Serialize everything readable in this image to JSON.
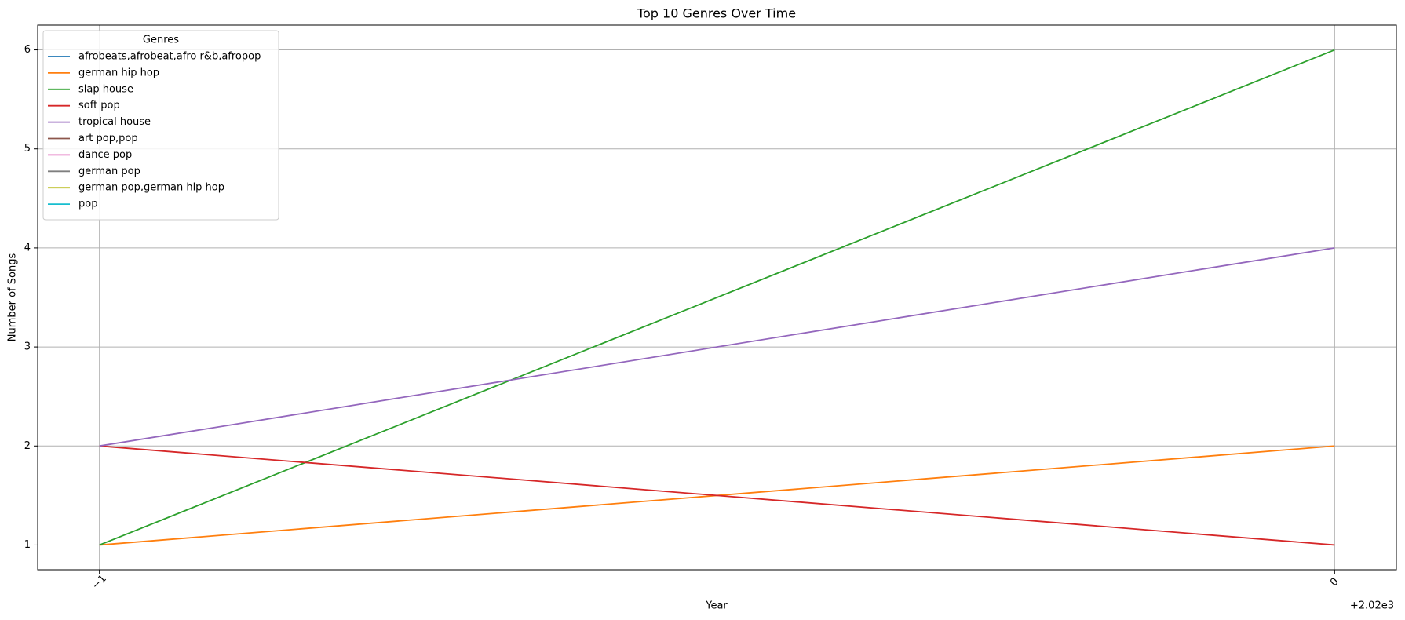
{
  "chart_data": {
    "type": "line",
    "title": "Top 10 Genres Over Time",
    "x_label": "Year",
    "y_label": "Number of Songs",
    "x_offset_label": "+2.02e3",
    "x": [
      2019,
      2020
    ],
    "xlim": [
      2018.95,
      2020.05
    ],
    "xticks": [
      {
        "value": 2019,
        "label": "−1"
      },
      {
        "value": 2020,
        "label": "0"
      }
    ],
    "ylim": [
      0.75,
      6.25
    ],
    "yticks": [
      1,
      2,
      3,
      4,
      5,
      6
    ],
    "grid": true,
    "legend_title": "Genres",
    "legend_position": "upper-left",
    "series": [
      {
        "name": "afrobeats,afrobeat,afro r&b,afropop",
        "color": "#1f77b4",
        "values": [
          null,
          null
        ]
      },
      {
        "name": "german hip hop",
        "color": "#ff7f0e",
        "values": [
          1,
          2
        ]
      },
      {
        "name": "slap house",
        "color": "#2ca02c",
        "values": [
          1,
          6
        ]
      },
      {
        "name": "soft pop",
        "color": "#d62728",
        "values": [
          2,
          1
        ]
      },
      {
        "name": "tropical house",
        "color": "#9467bd",
        "values": [
          2,
          4
        ]
      },
      {
        "name": "art pop,pop",
        "color": "#8c564b",
        "values": [
          null,
          null
        ]
      },
      {
        "name": "dance pop",
        "color": "#e377c2",
        "values": [
          null,
          null
        ]
      },
      {
        "name": "german pop",
        "color": "#7f7f7f",
        "values": [
          null,
          null
        ]
      },
      {
        "name": "german pop,german hip hop",
        "color": "#bcbd22",
        "values": [
          null,
          null
        ]
      },
      {
        "name": "pop",
        "color": "#17becf",
        "values": [
          null,
          null
        ]
      }
    ]
  }
}
